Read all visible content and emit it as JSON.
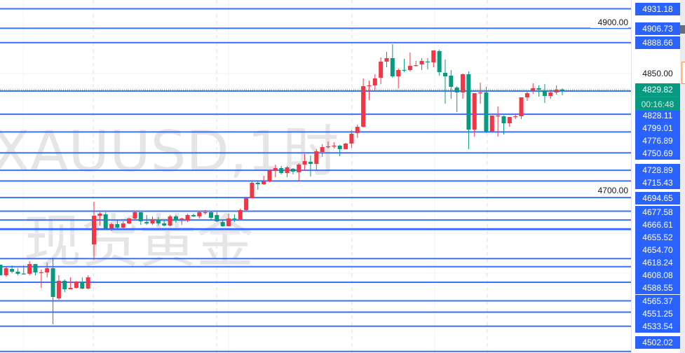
{
  "watermark": {
    "symbol_line": "XAUUSD,1时",
    "name_line": "现货黄金"
  },
  "colors": {
    "up": "#f23645",
    "down": "#089981",
    "level_line": "#2962ff",
    "current_price": "#089981",
    "grid": "#f0f3fa"
  },
  "current": {
    "price": "4829.82",
    "countdown": "00:16:48"
  },
  "axis_ticks": [
    "4900.00",
    "4850.00",
    "4700.00"
  ],
  "chart_data": {
    "type": "candlestick",
    "title": "",
    "ylim": [
      4497,
      4940
    ],
    "y_ticks": [
      4900,
      4850,
      4800,
      4750,
      4700,
      4650,
      4600,
      4550
    ],
    "grid": true,
    "up_color": "red",
    "levels": [
      4931.18,
      4906.73,
      4888.66,
      4828.11,
      4799.01,
      4776.89,
      4750.69,
      4728.89,
      4715.43,
      4694.65,
      4677.58,
      4666.61,
      4655.52,
      4654.7,
      4618.24,
      4608.08,
      4588.55,
      4565.37,
      4551.25,
      4533.54,
      4502.02
    ],
    "last_price": 4829.82,
    "ohlc": [
      [
        4610.6,
        4610.6,
        4597.4,
        4597.4
      ],
      [
        4597.4,
        4607.9,
        4595.7,
        4606.2
      ],
      [
        4605.3,
        4609.7,
        4600.0,
        4601.8
      ],
      [
        4601.8,
        4606.2,
        4597.4,
        4599.2
      ],
      [
        4599.5,
        4609.7,
        4598.3,
        4599.2
      ],
      [
        4599.2,
        4615.0,
        4597.4,
        4611.5
      ],
      [
        4611.5,
        4611.5,
        4597.4,
        4600.9
      ],
      [
        4600.9,
        4604.4,
        4581.6,
        4601.2
      ],
      [
        4600.9,
        4613.2,
        4594.8,
        4606.2
      ],
      [
        4606.2,
        4619.3,
        4536.0,
        4570.2
      ],
      [
        4568.4,
        4597.4,
        4566.7,
        4590.4
      ],
      [
        4590.4,
        4592.1,
        4576.3,
        4579.8
      ],
      [
        4579.8,
        4594.8,
        4579.8,
        4581.6
      ],
      [
        4581.6,
        4590.4,
        4580.7,
        4589.5
      ],
      [
        4589.5,
        4594.8,
        4579.8,
        4580.7
      ],
      [
        4580.7,
        4597.4,
        4579.8,
        4594.8
      ],
      [
        4636.0,
        4689.5,
        4616.7,
        4671.9
      ],
      [
        4671.9,
        4676.3,
        4659.6,
        4674.6
      ],
      [
        4673.7,
        4676.3,
        4655.3,
        4656.1
      ],
      [
        4656.1,
        4663.2,
        4652.6,
        4661.4
      ],
      [
        4661.4,
        4667.5,
        4656.1,
        4657.0
      ],
      [
        4657.0,
        4664.9,
        4656.1,
        4662.3
      ],
      [
        4662.3,
        4669.3,
        4661.4,
        4668.4
      ],
      [
        4668.4,
        4677.2,
        4666.7,
        4676.3
      ],
      [
        4676.3,
        4676.3,
        4660.5,
        4664.9
      ],
      [
        4664.0,
        4672.8,
        4660.5,
        4662.3
      ],
      [
        4662.3,
        4671.1,
        4660.5,
        4667.5
      ],
      [
        4666.7,
        4670.2,
        4659.6,
        4662.3
      ],
      [
        4662.3,
        4665.8,
        4658.8,
        4659.6
      ],
      [
        4659.6,
        4672.8,
        4658.8,
        4671.1
      ],
      [
        4671.1,
        4672.8,
        4663.2,
        4665.8
      ],
      [
        4668.2,
        4669.3,
        4660.5,
        4668.4
      ],
      [
        4665.8,
        4674.6,
        4664.0,
        4672.8
      ],
      [
        4672.8,
        4674.6,
        4670.2,
        4671.1
      ],
      [
        4671.1,
        4678.1,
        4668.4,
        4676.3
      ],
      [
        4676.1,
        4679.0,
        4673.7,
        4676.3
      ],
      [
        4676.3,
        4677.2,
        4665.8,
        4669.3
      ],
      [
        4672.8,
        4676.3,
        4664.0,
        4664.9
      ],
      [
        4664.0,
        4666.7,
        4657.9,
        4658.8
      ],
      [
        4658.8,
        4674.6,
        4658.8,
        4668.4
      ],
      [
        4668.6,
        4673.7,
        4664.0,
        4668.4
      ],
      [
        4667.5,
        4680.7,
        4667.5,
        4679.0
      ],
      [
        4679.0,
        4695.6,
        4678.1,
        4693.9
      ],
      [
        4693.9,
        4715.8,
        4693.9,
        4713.2
      ],
      [
        4713.2,
        4715.8,
        4704.4,
        4711.4
      ],
      [
        4711.4,
        4721.9,
        4710.5,
        4714.9
      ],
      [
        4714.9,
        4729.8,
        4714.0,
        4728.1
      ],
      [
        4729.0,
        4736.0,
        4720.2,
        4731.6
      ],
      [
        4731.6,
        4734.2,
        4723.7,
        4725.4
      ],
      [
        4725.4,
        4734.2,
        4720.2,
        4732.5
      ],
      [
        4730.7,
        4731.6,
        4723.7,
        4727.2
      ],
      [
        4726.3,
        4737.7,
        4714.9,
        4736.0
      ],
      [
        4736.0,
        4749.1,
        4729.0,
        4740.4
      ],
      [
        4739.5,
        4747.4,
        4721.1,
        4736.8
      ],
      [
        4736.8,
        4755.3,
        4729.0,
        4752.6
      ],
      [
        4751.8,
        4761.4,
        4745.6,
        4757.9
      ],
      [
        4758.6,
        4764.9,
        4756.1,
        4758.8
      ],
      [
        4759.5,
        4764.0,
        4756.1,
        4759.7
      ],
      [
        4759.7,
        4760.6,
        4746.5,
        4755.3
      ],
      [
        4755.3,
        4763.2,
        4755.3,
        4762.3
      ],
      [
        4762.3,
        4779.0,
        4757.0,
        4774.6
      ],
      [
        4775.4,
        4786.0,
        4769.3,
        4783.3
      ],
      [
        4783.3,
        4843.9,
        4782.4,
        4834.2
      ],
      [
        4834.9,
        4841.2,
        4816.7,
        4835.1
      ],
      [
        4835.1,
        4849.1,
        4828.1,
        4843.9
      ],
      [
        4844.7,
        4870.2,
        4836.8,
        4864.9
      ],
      [
        4864.9,
        4877.2,
        4857.9,
        4869.3
      ],
      [
        4869.3,
        4886.8,
        4844.7,
        4846.5
      ],
      [
        4846.5,
        4856.1,
        4831.6,
        4854.4
      ],
      [
        4854.6,
        4868.4,
        4851.8,
        4854.4
      ],
      [
        4854.4,
        4876.3,
        4852.6,
        4859.6
      ],
      [
        4860.3,
        4865.8,
        4858.8,
        4860.5
      ],
      [
        4861.4,
        4869.3,
        4854.4,
        4865.8
      ],
      [
        4865.1,
        4869.3,
        4855.3,
        4864.9
      ],
      [
        4864.0,
        4878.9,
        4857.9,
        4878.9
      ],
      [
        4878.1,
        4879.8,
        4847.4,
        4851.8
      ],
      [
        4850.9,
        4867.5,
        4812.3,
        4846.5
      ],
      [
        4847.4,
        4854.4,
        4818.4,
        4833.3
      ],
      [
        4832.5,
        4834.2,
        4801.8,
        4826.3
      ],
      [
        4826.3,
        4850.0,
        4818.4,
        4849.1
      ],
      [
        4849.1,
        4852.6,
        4755.3,
        4779.8
      ],
      [
        4779.8,
        4825.4,
        4771.1,
        4825.4
      ],
      [
        4826.1,
        4838.6,
        4812.3,
        4826.3
      ],
      [
        4826.3,
        4833.3,
        4775.4,
        4777.2
      ],
      [
        4777.2,
        4797.4,
        4777.2,
        4797.4
      ],
      [
        4797.2,
        4808.8,
        4771.1,
        4797.4
      ],
      [
        4796.5,
        4797.4,
        4773.7,
        4787.7
      ],
      [
        4787.7,
        4795.6,
        4783.3,
        4795.6
      ],
      [
        4796.3,
        4800.0,
        4793.0,
        4796.5
      ],
      [
        4796.5,
        4820.2,
        4793.0,
        4820.2
      ],
      [
        4820.2,
        4827.2,
        4815.8,
        4825.4
      ],
      [
        4828.1,
        4837.7,
        4824.6,
        4831.6
      ],
      [
        4831.6,
        4835.1,
        4821.1,
        4829.8
      ],
      [
        4828.9,
        4836.8,
        4813.2,
        4821.9
      ],
      [
        4821.9,
        4829.8,
        4818.4,
        4826.3
      ],
      [
        4826.3,
        4835.1,
        4823.7,
        4829.8
      ],
      [
        4830.0,
        4831.6,
        4822.8,
        4829.82
      ]
    ]
  }
}
